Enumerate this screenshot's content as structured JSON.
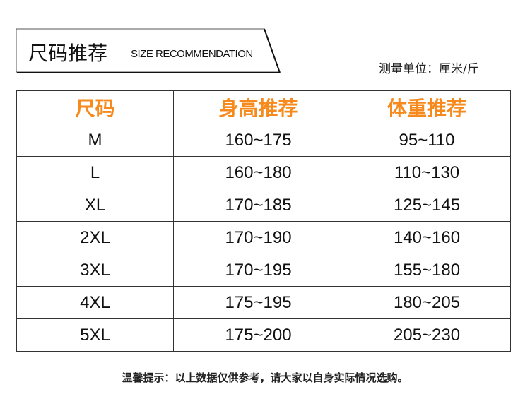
{
  "title_cn": "尺码推荐",
  "title_en": "SIZE RECOMMENDATION",
  "unit": "测量单位：厘米/斤",
  "headers": [
    "尺码",
    "身高推荐",
    "体重推荐"
  ],
  "rows": [
    [
      "M",
      "160~175",
      "95~110"
    ],
    [
      "L",
      "160~180",
      "110~130"
    ],
    [
      "XL",
      "170~185",
      "125~145"
    ],
    [
      "2XL",
      "170~190",
      "140~160"
    ],
    [
      "3XL",
      "170~195",
      "155~180"
    ],
    [
      "4XL",
      "175~195",
      "180~205"
    ],
    [
      "5XL",
      "175~200",
      "205~230"
    ]
  ],
  "tip": "温馨提示：以上数据仅供参考，请大家以自身实际情况选购。",
  "accent": "#f78a1d"
}
